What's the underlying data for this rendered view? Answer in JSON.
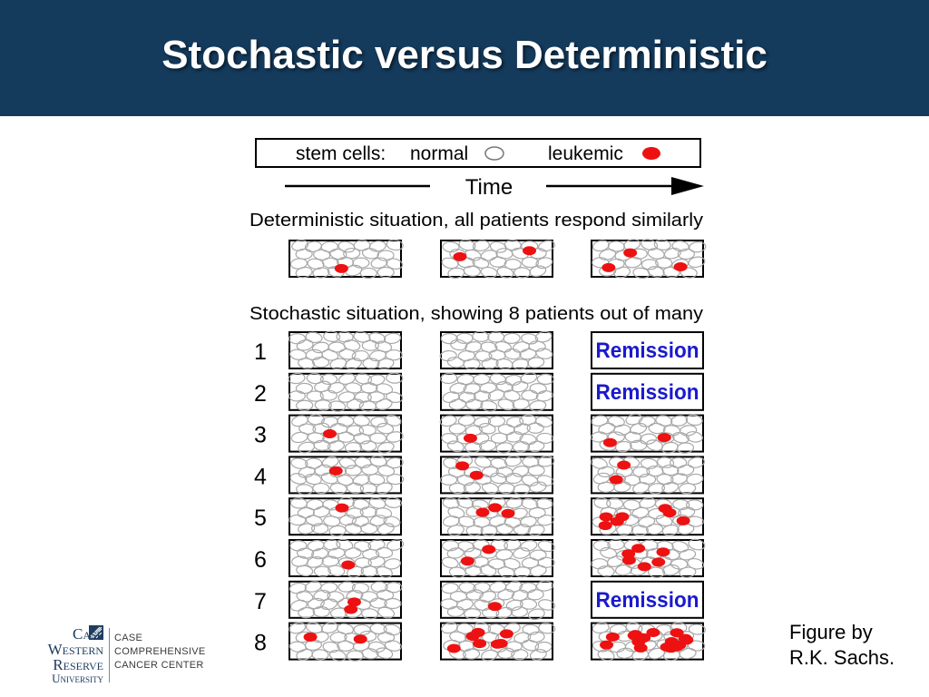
{
  "slide": {
    "title": "Stochastic versus Deterministic",
    "credit_line1": "Figure by",
    "credit_line2": "R.K. Sachs."
  },
  "legend": {
    "label": "stem cells:",
    "normal": "normal",
    "leukemic": "leukemic",
    "normal_color": "#ffffff",
    "leukemic_color": "#ee1111"
  },
  "time_label": "Time",
  "deterministic": {
    "heading": "Deterministic situation, all patients respond similarly",
    "leukemic_counts": [
      1,
      2,
      3
    ]
  },
  "stochastic": {
    "heading": "Stochastic situation, showing 8 patients out of many",
    "remission_label": "Remission",
    "patients": [
      {
        "label": "1",
        "stages": [
          0,
          0,
          "remission"
        ]
      },
      {
        "label": "2",
        "stages": [
          0,
          0,
          "remission"
        ]
      },
      {
        "label": "3",
        "stages": [
          1,
          1,
          2
        ]
      },
      {
        "label": "4",
        "stages": [
          1,
          2,
          2
        ]
      },
      {
        "label": "5",
        "stages": [
          1,
          3,
          7
        ]
      },
      {
        "label": "6",
        "stages": [
          1,
          2,
          6
        ]
      },
      {
        "label": "7",
        "stages": [
          2,
          1,
          "remission"
        ]
      },
      {
        "label": "8",
        "stages": [
          2,
          7,
          16
        ]
      }
    ]
  },
  "logo": {
    "left_lines": [
      "Case",
      "Western",
      "Reserve",
      "University"
    ],
    "right_lines": [
      "CASE",
      "COMPREHENSIVE",
      "CANCER CENTER"
    ]
  },
  "colors": {
    "title_bar": "#143a5c",
    "remission_text": "#1a1acc",
    "cell_outline": "#a8a8a8"
  }
}
